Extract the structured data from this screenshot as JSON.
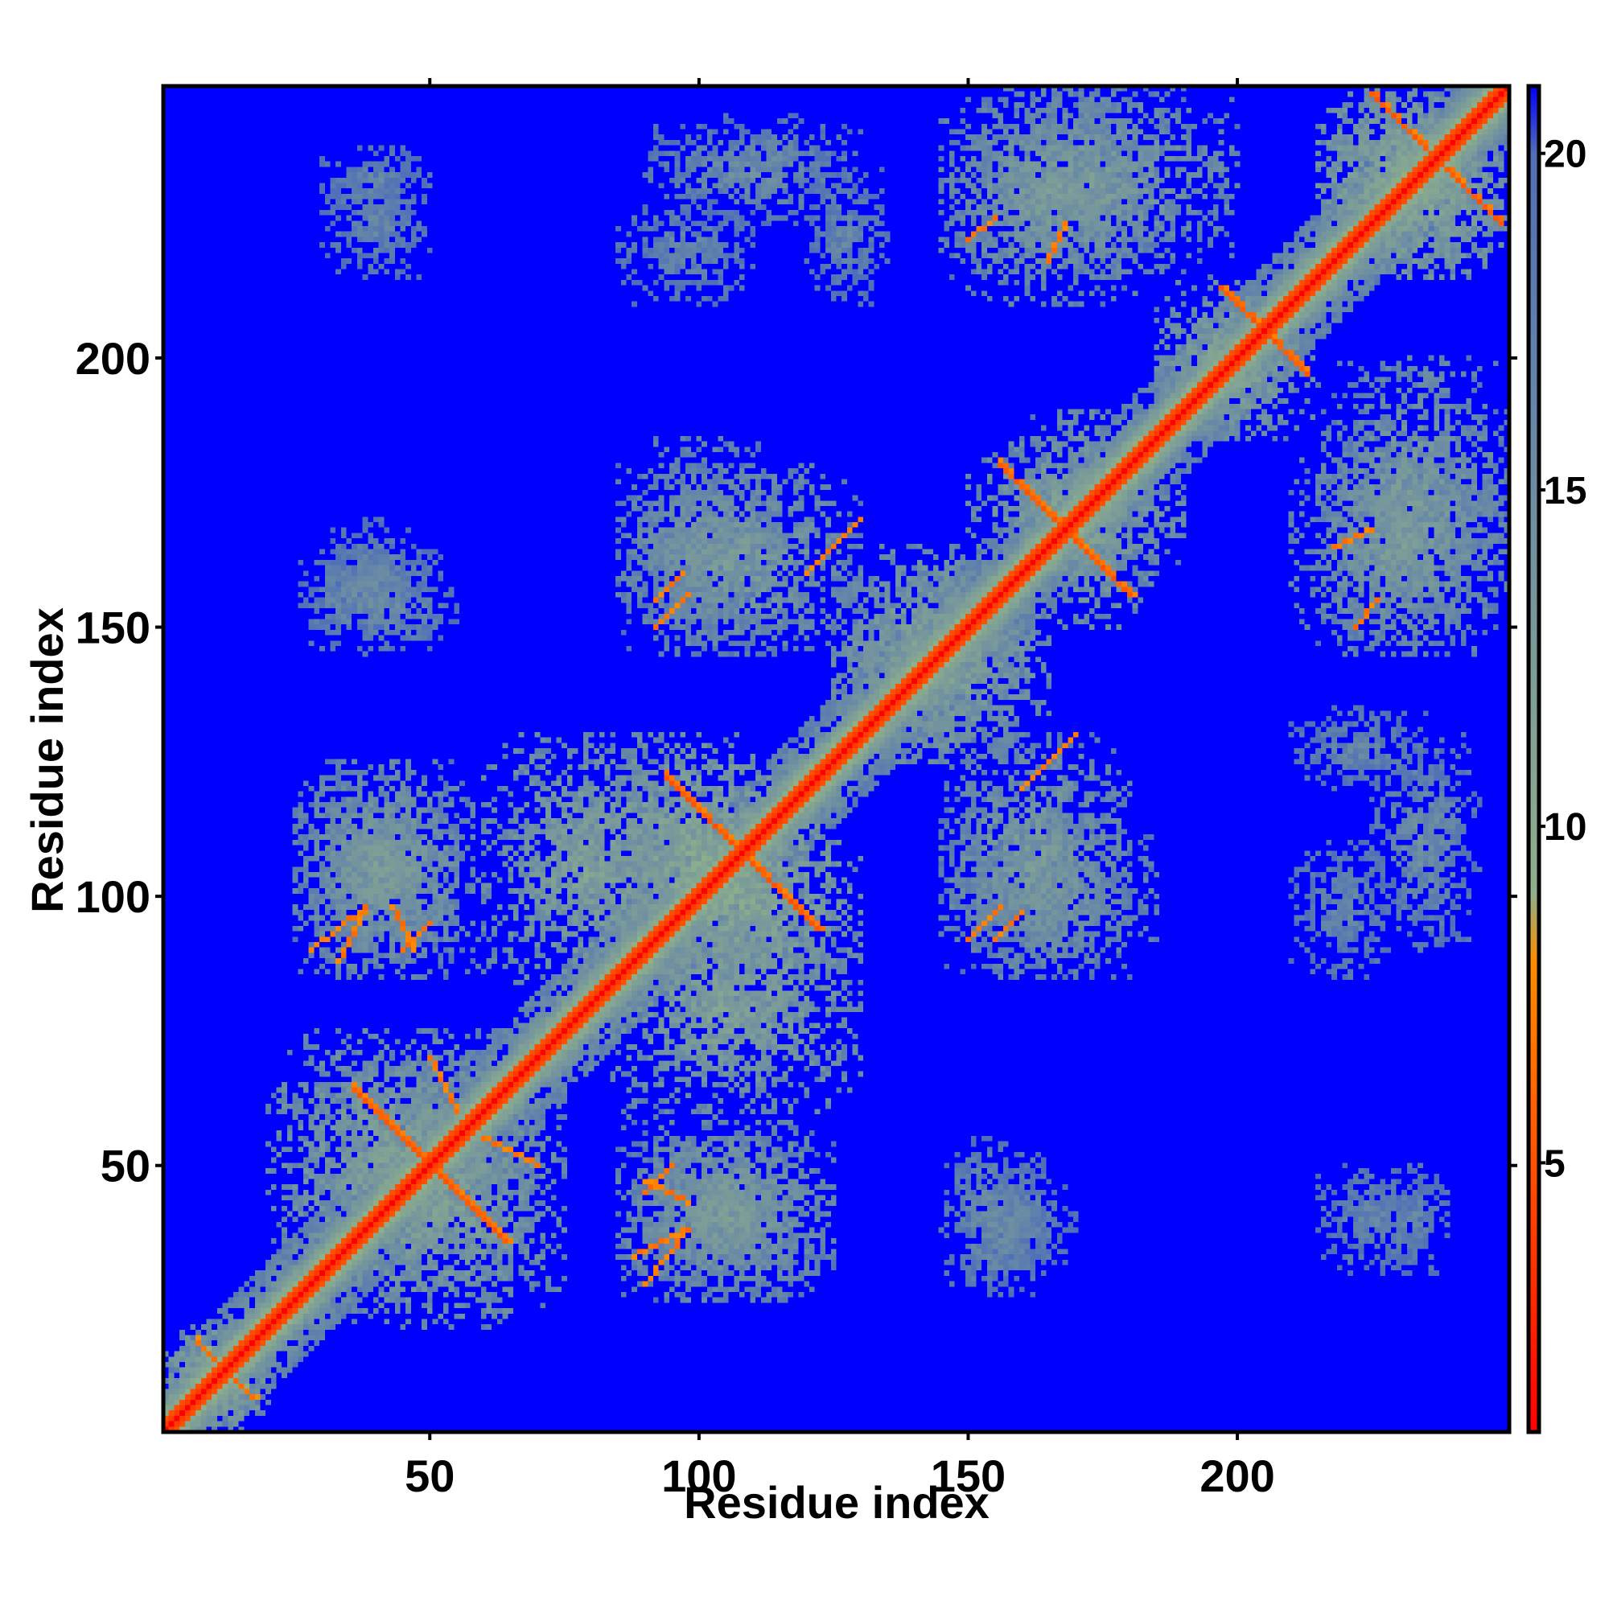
{
  "chart_data": {
    "type": "heatmap",
    "title": "",
    "xlabel": "Residue index",
    "ylabel": "Residue index",
    "n_residues": 250,
    "xlim": [
      1,
      250
    ],
    "ylim": [
      1,
      250
    ],
    "x_ticks": [
      50,
      100,
      150,
      200
    ],
    "y_ticks": [
      50,
      100,
      150,
      200
    ],
    "x_tick_labels": [
      "50",
      "100",
      "150",
      "200"
    ],
    "y_tick_labels": [
      "50",
      "100",
      "150",
      "200"
    ],
    "colorbar": {
      "range": [
        1,
        21
      ],
      "ticks": [
        5,
        10,
        15,
        20
      ],
      "tick_labels": [
        "5",
        "10",
        "15",
        "20"
      ],
      "colors": [
        "#ff0000",
        "#ff8c00",
        "#8fb08a",
        "#4f6fb8",
        "#0000ff"
      ],
      "stops": [
        1,
        8,
        9,
        20,
        21
      ]
    },
    "background_value": 21,
    "diagonal_value": 1,
    "palette": {
      "background": "#0000ff",
      "diagonal": "#ff0000",
      "close_contact": "#ff8c00",
      "mid_contact": "#8fb08a",
      "far_contact": "#4f6fb8"
    },
    "contact_blocks": [
      {
        "x": [
          1,
          20
        ],
        "y": [
          1,
          20
        ],
        "value": 11
      },
      {
        "x": [
          20,
          70
        ],
        "y": [
          25,
          75
        ],
        "value": 12
      },
      {
        "x": [
          25,
          60
        ],
        "y": [
          85,
          125
        ],
        "value": 13
      },
      {
        "x": [
          25,
          55
        ],
        "y": [
          145,
          165
        ],
        "value": 15
      },
      {
        "x": [
          30,
          50
        ],
        "y": [
          225,
          240
        ],
        "value": 16
      },
      {
        "x": [
          60,
          100
        ],
        "y": [
          80,
          130
        ],
        "value": 12
      },
      {
        "x": [
          85,
          125
        ],
        "y": [
          25,
          55
        ],
        "value": 13
      },
      {
        "x": [
          80,
          120
        ],
        "y": [
          85,
          130
        ],
        "value": 11
      },
      {
        "x": [
          85,
          130
        ],
        "y": [
          145,
          180
        ],
        "value": 13
      },
      {
        "x": [
          90,
          130
        ],
        "y": [
          225,
          245
        ],
        "value": 15
      },
      {
        "x": [
          125,
          165
        ],
        "y": [
          125,
          160
        ],
        "value": 12
      },
      {
        "x": [
          145,
          185
        ],
        "y": [
          85,
          115
        ],
        "value": 14
      },
      {
        "x": [
          150,
          170
        ],
        "y": [
          30,
          50
        ],
        "value": 16
      },
      {
        "x": [
          150,
          190
        ],
        "y": [
          160,
          185
        ],
        "value": 12
      },
      {
        "x": [
          145,
          200
        ],
        "y": [
          215,
          250
        ],
        "value": 13
      },
      {
        "x": [
          185,
          210
        ],
        "y": [
          185,
          215
        ],
        "value": 12
      },
      {
        "x": [
          210,
          250
        ],
        "y": [
          145,
          185
        ],
        "value": 13
      },
      {
        "x": [
          215,
          250
        ],
        "y": [
          215,
          250
        ],
        "value": 11
      },
      {
        "x": [
          210,
          230
        ],
        "y": [
          85,
          110
        ],
        "value": 16
      },
      {
        "x": [
          215,
          235
        ],
        "y": [
          30,
          50
        ],
        "value": 16
      },
      {
        "x": [
          210,
          235
        ],
        "y": [
          120,
          135
        ],
        "value": 16
      }
    ],
    "anti_diagonal_contacts": [
      {
        "center": [
          50,
          50
        ],
        "length": 14,
        "value": 5
      },
      {
        "center": [
          108,
          108
        ],
        "length": 14,
        "value": 5
      },
      {
        "center": [
          168,
          168
        ],
        "length": 12,
        "value": 5
      },
      {
        "center": [
          237,
          237
        ],
        "length": 12,
        "value": 5
      },
      {
        "center": [
          205,
          205
        ],
        "length": 8,
        "value": 5
      },
      {
        "center": [
          12,
          12
        ],
        "length": 5,
        "value": 6
      }
    ],
    "off_diagonal_contacts": [
      {
        "from": [
          28,
          90
        ],
        "to": [
          38,
          98
        ],
        "value": 6
      },
      {
        "from": [
          88,
          33
        ],
        "to": [
          98,
          38
        ],
        "value": 6
      },
      {
        "from": [
          90,
          47
        ],
        "to": [
          98,
          43
        ],
        "value": 6
      },
      {
        "from": [
          92,
          150
        ],
        "to": [
          98,
          156
        ],
        "value": 6
      },
      {
        "from": [
          155,
          92
        ],
        "to": [
          160,
          97
        ],
        "value": 6
      },
      {
        "from": [
          120,
          160
        ],
        "to": [
          128,
          168
        ],
        "value": 6
      },
      {
        "from": [
          222,
          150
        ],
        "to": [
          226,
          155
        ],
        "value": 6
      },
      {
        "from": [
          218,
          165
        ],
        "to": [
          225,
          168
        ],
        "value": 6
      },
      {
        "from": [
          45,
          90
        ],
        "to": [
          50,
          95
        ],
        "value": 6
      },
      {
        "from": [
          60,
          55
        ],
        "to": [
          70,
          50
        ],
        "value": 6
      },
      {
        "from": [
          165,
          125
        ],
        "to": [
          170,
          130
        ],
        "value": 6
      }
    ]
  }
}
